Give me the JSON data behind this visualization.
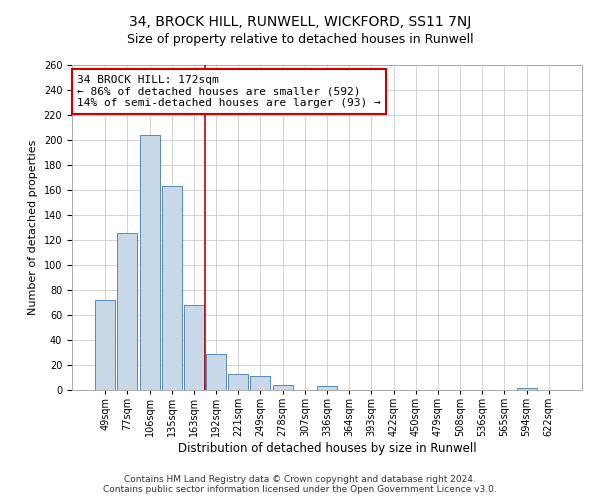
{
  "title": "34, BROCK HILL, RUNWELL, WICKFORD, SS11 7NJ",
  "subtitle": "Size of property relative to detached houses in Runwell",
  "xlabel": "Distribution of detached houses by size in Runwell",
  "ylabel": "Number of detached properties",
  "bar_labels": [
    "49sqm",
    "77sqm",
    "106sqm",
    "135sqm",
    "163sqm",
    "192sqm",
    "221sqm",
    "249sqm",
    "278sqm",
    "307sqm",
    "336sqm",
    "364sqm",
    "393sqm",
    "422sqm",
    "450sqm",
    "479sqm",
    "508sqm",
    "536sqm",
    "565sqm",
    "594sqm",
    "622sqm"
  ],
  "bar_values": [
    72,
    126,
    204,
    163,
    68,
    29,
    13,
    11,
    4,
    0,
    3,
    0,
    0,
    0,
    0,
    0,
    0,
    0,
    0,
    2,
    0
  ],
  "bar_color": "#c8d8e8",
  "bar_edge_color": "#5588bb",
  "vline_x": 4.5,
  "vline_color": "#cc0000",
  "annotation_line1": "34 BROCK HILL: 172sqm",
  "annotation_line2": "← 86% of detached houses are smaller (592)",
  "annotation_line3": "14% of semi-detached houses are larger (93) →",
  "annotation_box_color": "#ffffff",
  "annotation_box_edge": "#cc0000",
  "ylim": [
    0,
    260
  ],
  "yticks": [
    0,
    20,
    40,
    60,
    80,
    100,
    120,
    140,
    160,
    180,
    200,
    220,
    240,
    260
  ],
  "grid_color": "#cccccc",
  "bg_color": "#ffffff",
  "fig_bg_color": "#ffffff",
  "footer1": "Contains HM Land Registry data © Crown copyright and database right 2024.",
  "footer2": "Contains public sector information licensed under the Open Government Licence v3.0.",
  "title_fontsize": 10,
  "subtitle_fontsize": 9,
  "xlabel_fontsize": 8.5,
  "ylabel_fontsize": 8,
  "tick_fontsize": 7,
  "annot_fontsize": 8,
  "footer_fontsize": 6.5
}
